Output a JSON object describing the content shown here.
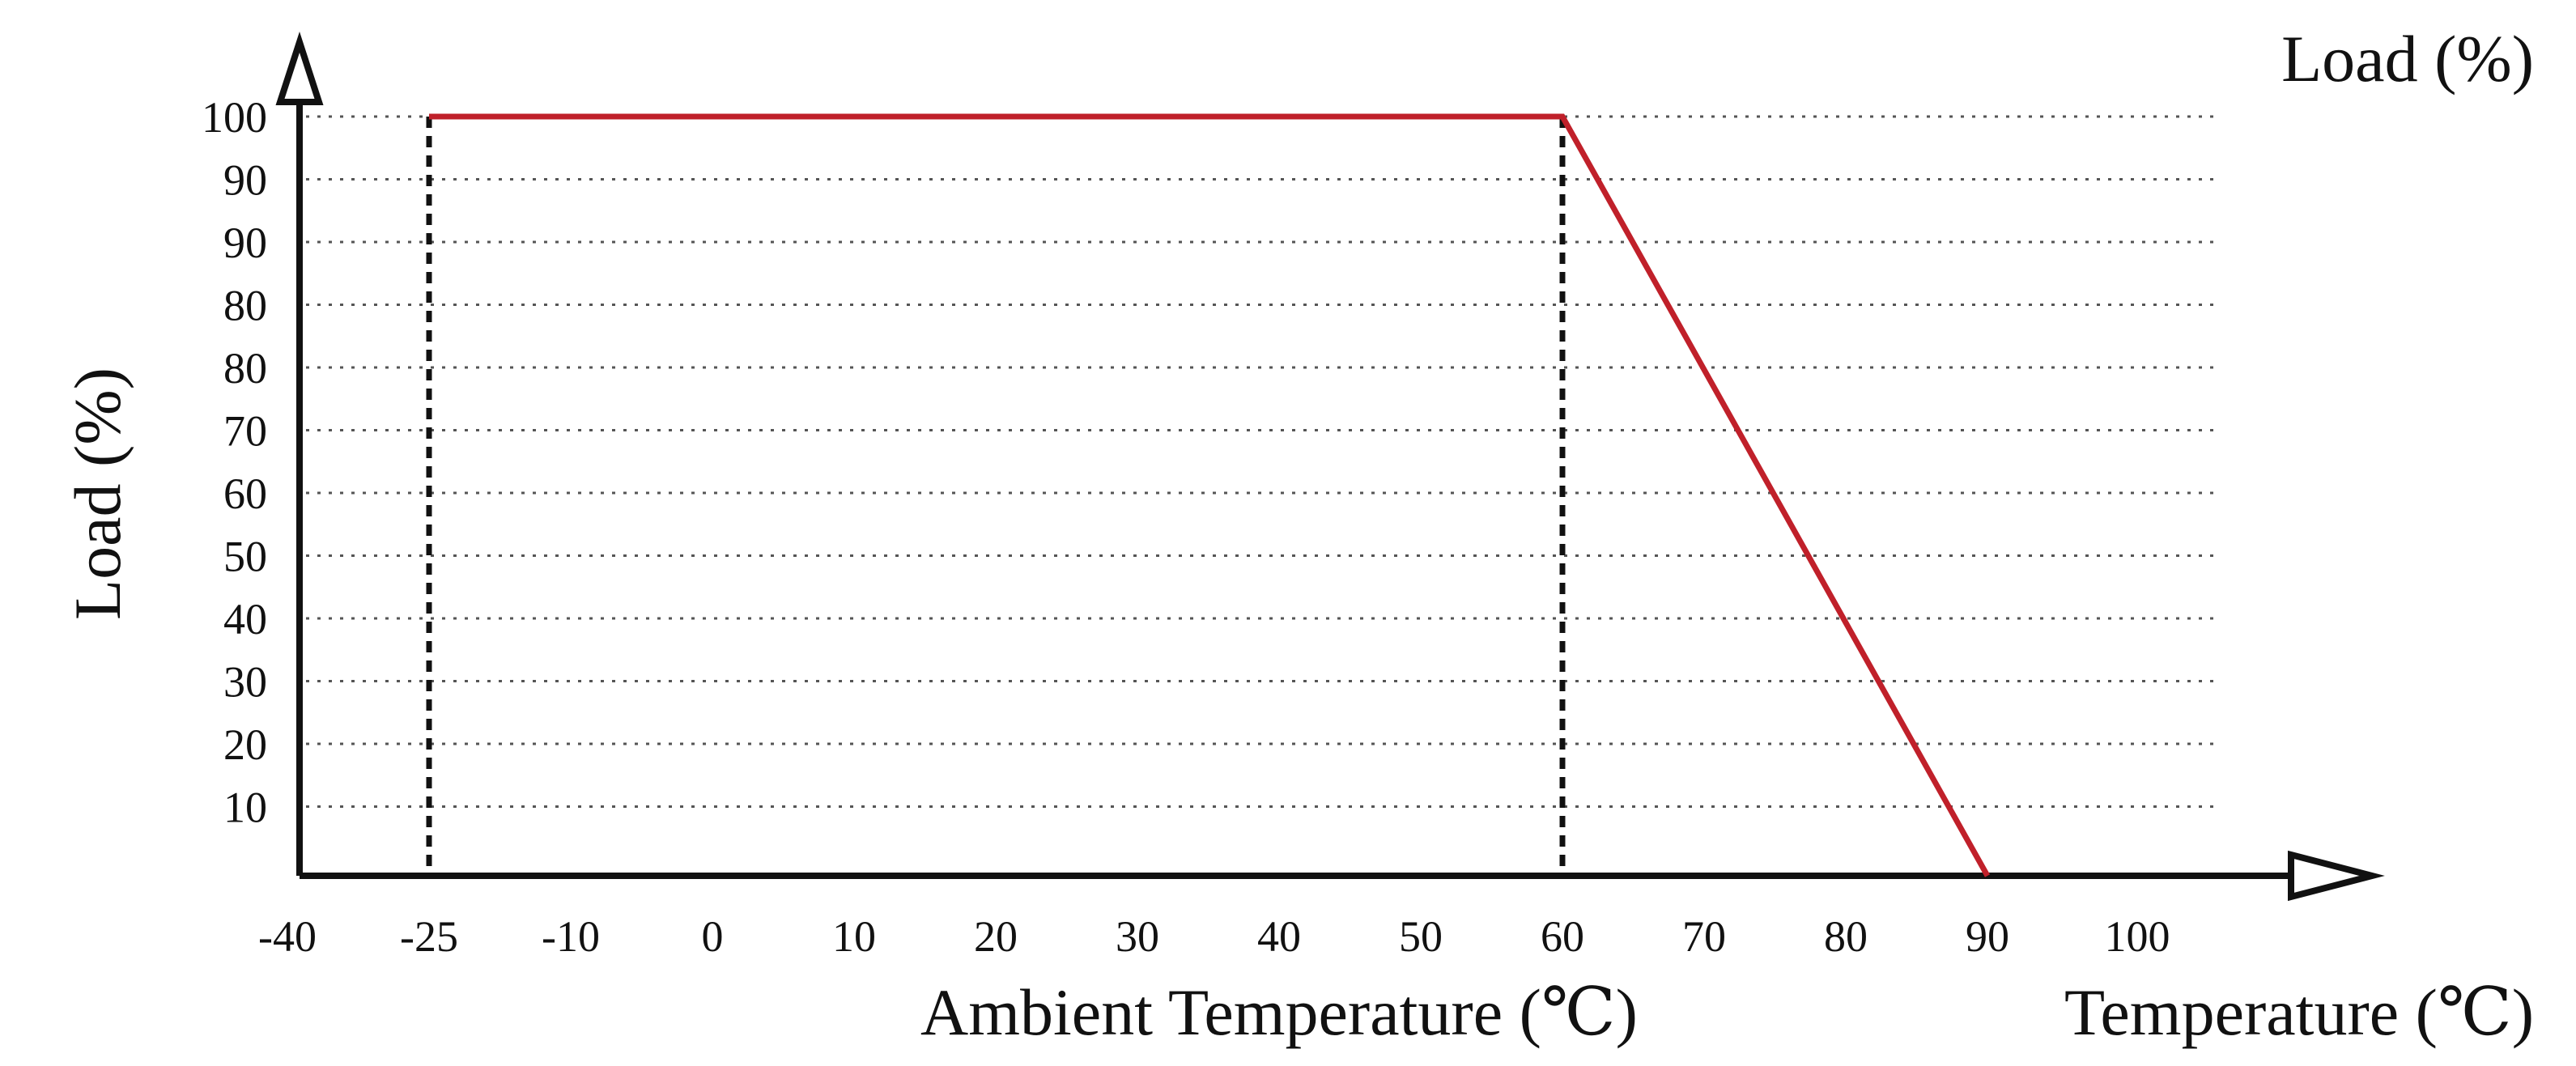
{
  "chart_data": {
    "type": "line",
    "xlabel": "Ambient Temperature (℃)",
    "ylabel": "Load (%)",
    "x_axis_end_label": "Temperature (℃)",
    "y_axis_end_label": "Load (%)",
    "x_ticks": [
      "-40",
      "-25",
      "-10",
      "0",
      "10",
      "20",
      "30",
      "40",
      "50",
      "60",
      "70",
      "80",
      "90",
      "100"
    ],
    "y_ticks": [
      "100",
      "90",
      "90",
      "80",
      "80",
      "70",
      "60",
      "50",
      "40",
      "30",
      "20",
      "10"
    ],
    "series": [
      {
        "color": "#c0202a",
        "points": [
          [
            -25,
            100
          ],
          [
            60,
            100
          ],
          [
            90,
            0
          ]
        ]
      }
    ],
    "reference_lines_x": [
      -25,
      60
    ],
    "grid": "dotted horizontal",
    "xlim": [
      -40,
      100
    ],
    "ylim": [
      0,
      100
    ]
  },
  "colors": {
    "line": "#c0202a",
    "axis": "#111111",
    "grid": "#555555"
  }
}
